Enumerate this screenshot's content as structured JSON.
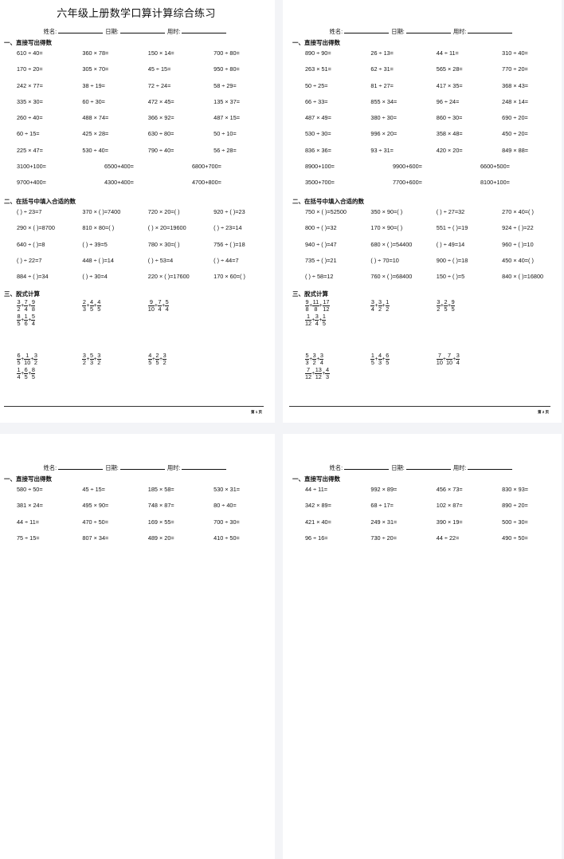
{
  "document_title": "六年级上册数学口算计算综合练习",
  "labels": {
    "name": "姓名:",
    "date": "日期:",
    "time": "用时:"
  },
  "section_headings": [
    "一、直接写出得数",
    "二、在括号中填入合适的数",
    "三、脱式计算"
  ],
  "pages": [
    {
      "show_title": true,
      "direct": [
        "610 ÷ 40=",
        "360 × 78=",
        "150 × 14=",
        "700 ÷ 80=",
        "170 ÷ 20=",
        "305 × 70=",
        "45 ÷ 15=",
        "950 ÷ 80=",
        "242 × 77=",
        "38 ÷ 19=",
        "72 ÷ 24=",
        "58 ÷ 29=",
        "335 × 30=",
        "60 ÷ 30=",
        "472 × 45=",
        "135 × 37=",
        "260 ÷ 40=",
        "488 × 74=",
        "366 × 92=",
        "487 × 15=",
        "60 ÷ 15=",
        "425 × 28=",
        "630 ÷ 80=",
        "50 ÷ 10=",
        "225 × 47=",
        "530 ÷ 40=",
        "790 ÷ 40=",
        "56 ÷ 28="
      ],
      "addition": [
        "3100+100=",
        "6500+400=",
        "6800+700=",
        "9700+400=",
        "4300+400=",
        "4700+800="
      ],
      "fill": [
        "(      ) ÷ 23=7",
        "370 × (      )=7400",
        "720 × 20=(      )",
        "920 ÷ (      )=23",
        "290 × (      )=8700",
        "810 × 80=(      )",
        "(      ) × 20=19600",
        "(      ) ÷ 23=14",
        "640 ÷ (      )=8",
        "(      ) ÷ 39=5",
        "780 × 30=(      )",
        "756 ÷ (      )=18",
        "(      ) ÷ 22=7",
        "448 ÷ (      )=14",
        "(      ) ÷ 53=4",
        "(      ) ÷ 44=7",
        "884 ÷ (      )=34",
        "(      ) ÷ 30=4",
        "220 × (      )=17600",
        "170 × 60=(      )"
      ],
      "fractions": [
        [
          {
            "n": "3",
            "d": "2"
          },
          {
            "n": "7",
            "d": "4"
          },
          {
            "n": "9",
            "d": "8"
          }
        ],
        [
          {
            "n": "2",
            "d": "3"
          },
          {
            "n": "4",
            "d": "5"
          },
          {
            "n": "4",
            "d": "5"
          }
        ],
        [
          {
            "n": "9",
            "d": "10"
          },
          {
            "n": "7",
            "d": "4"
          },
          {
            "n": "5",
            "d": "4"
          }
        ],
        [
          {
            "n": "8",
            "d": "5"
          },
          {
            "n": "1",
            "d": "6"
          },
          {
            "n": "5",
            "d": "4"
          }
        ],
        [
          {
            "n": "6",
            "d": "5"
          },
          {
            "n": "1",
            "d": "10"
          },
          {
            "n": "3",
            "d": "2"
          }
        ],
        [
          {
            "n": "3",
            "d": "2"
          },
          {
            "n": "5",
            "d": "3"
          },
          {
            "n": "3",
            "d": "2"
          }
        ],
        [
          {
            "n": "4",
            "d": "5"
          },
          {
            "n": "2",
            "d": "5"
          },
          {
            "n": "3",
            "d": "2"
          }
        ],
        [
          {
            "n": "1",
            "d": "4"
          },
          {
            "n": "6",
            "d": "5"
          },
          {
            "n": "8",
            "d": "5"
          }
        ]
      ],
      "page_number": "第 1 页"
    },
    {
      "show_title": false,
      "direct": [
        "890 ÷ 90=",
        "26 ÷ 13=",
        "44 ÷ 11=",
        "310 ÷ 40=",
        "263 × 51=",
        "62 ÷ 31=",
        "565 × 28=",
        "770 ÷ 20=",
        "50 ÷ 25=",
        "81 ÷ 27=",
        "417 × 35=",
        "368 × 43=",
        "66 ÷ 33=",
        "855 × 34=",
        "96 ÷ 24=",
        "248 × 14=",
        "487 × 49=",
        "380 ÷ 30=",
        "860 ÷ 30=",
        "690 ÷ 20=",
        "530 ÷ 30=",
        "996 × 20=",
        "358 × 48=",
        "450 ÷ 20=",
        "836 × 36=",
        "93 ÷ 31=",
        "420 × 20=",
        "849 × 88="
      ],
      "addition": [
        "8900+100=",
        "9900+600=",
        "6600+500=",
        "3500+700=",
        "7700+600=",
        "8100+100="
      ],
      "fill": [
        "750 × (      )=52500",
        "350 × 90=(      )",
        "(      ) ÷ 27=32",
        "270 × 40=(      )",
        "800 ÷ (      )=32",
        "170 × 90=(      )",
        "551 ÷ (      )=19",
        "924 ÷ (      )=22",
        "940 ÷ (      )=47",
        "680 × (      )=54400",
        "(      ) ÷ 49=14",
        "960 ÷ (      )=10",
        "735 ÷ (      )=21",
        "(      ) ÷ 70=10",
        "900 ÷ (      )=18",
        "450 × 40=(      )",
        "(      ) ÷ 58=12",
        "760 × (      )=68400",
        "150 ÷ (      )=5",
        "840 × (      )=16800"
      ],
      "fractions": [
        [
          {
            "n": "9",
            "d": "8"
          },
          {
            "n": "11",
            "d": "8"
          },
          {
            "n": "17",
            "d": "12"
          }
        ],
        [
          {
            "n": "3",
            "d": "4"
          },
          {
            "n": "3",
            "d": "2"
          },
          {
            "n": "1",
            "d": "2"
          }
        ],
        [
          {
            "n": "3",
            "d": "2"
          },
          {
            "n": "2",
            "d": "5"
          },
          {
            "n": "9",
            "d": "5"
          }
        ],
        [
          {
            "n": "1",
            "d": "12"
          },
          {
            "n": "3",
            "d": "4"
          },
          {
            "n": "1",
            "d": "5"
          }
        ],
        [
          {
            "n": "5",
            "d": "3"
          },
          {
            "n": "3",
            "d": "2"
          },
          {
            "n": "3",
            "d": "4"
          }
        ],
        [
          {
            "n": "1",
            "d": "5"
          },
          {
            "n": "4",
            "d": "3"
          },
          {
            "n": "6",
            "d": "5"
          }
        ],
        [
          {
            "n": "7",
            "d": "10"
          },
          {
            "n": "7",
            "d": "10"
          },
          {
            "n": "3",
            "d": "4"
          }
        ],
        [
          {
            "n": "7",
            "d": "12"
          },
          {
            "n": "13",
            "d": "12"
          },
          {
            "n": "4",
            "d": "3"
          }
        ]
      ],
      "page_number": "第 2 页"
    },
    {
      "show_title": false,
      "direct": [
        "580 ÷ 50=",
        "45 ÷ 15=",
        "185 × 58=",
        "530 × 31=",
        "381 × 24=",
        "495 × 90=",
        "748 × 87=",
        "80 ÷ 40=",
        "44 ÷ 11=",
        "470 ÷ 50=",
        "169 × 55=",
        "700 ÷ 30=",
        "75 ÷ 15=",
        "807 × 34=",
        "489 × 20=",
        "410 ÷ 50="
      ]
    },
    {
      "show_title": false,
      "direct": [
        "44 ÷ 11=",
        "992 × 89=",
        "456 × 73=",
        "830 × 93=",
        "342 × 89=",
        "68 ÷ 17=",
        "102 × 87=",
        "890 ÷ 20=",
        "421 × 40=",
        "249 × 31=",
        "390 × 19=",
        "500 ÷ 30=",
        "96 ÷ 16=",
        "730 ÷ 20=",
        "44 ÷ 22=",
        "490 ÷ 50="
      ]
    }
  ]
}
